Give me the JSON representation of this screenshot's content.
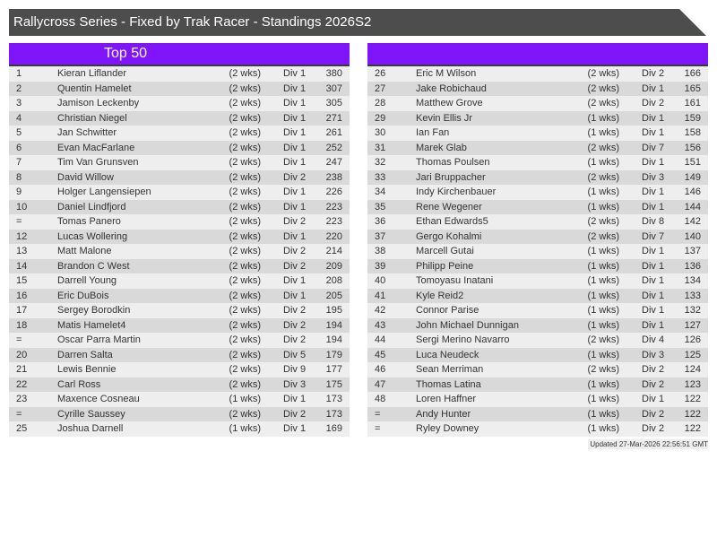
{
  "title": "Rallycross Series - Fixed by Trak Racer - Standings 2026S2",
  "left_panel": {
    "heading": "Top 50",
    "rows": [
      [
        "1",
        "Kieran Liflander",
        "(2 wks)",
        "Div 1",
        "380"
      ],
      [
        "2",
        "Quentin Hamelet",
        "(2 wks)",
        "Div 1",
        "307"
      ],
      [
        "3",
        "Jamison Leckenby",
        "(2 wks)",
        "Div 1",
        "305"
      ],
      [
        "4",
        "Christian Niegel",
        "(2 wks)",
        "Div 1",
        "271"
      ],
      [
        "5",
        "Jan Schwitter",
        "(2 wks)",
        "Div 1",
        "261"
      ],
      [
        "6",
        "Evan MacFarlane",
        "(2 wks)",
        "Div 1",
        "252"
      ],
      [
        "7",
        "Tim Van Grunsven",
        "(2 wks)",
        "Div 1",
        "247"
      ],
      [
        "8",
        "David Willow",
        "(2 wks)",
        "Div 2",
        "238"
      ],
      [
        "9",
        "Holger Langensiepen",
        "(2 wks)",
        "Div 1",
        "226"
      ],
      [
        "10",
        "Daniel Lindfjord",
        "(2 wks)",
        "Div 1",
        "223"
      ],
      [
        "=",
        "Tomas Panero",
        "(2 wks)",
        "Div 2",
        "223"
      ],
      [
        "12",
        "Lucas Wollering",
        "(2 wks)",
        "Div 1",
        "220"
      ],
      [
        "13",
        "Matt Malone",
        "(2 wks)",
        "Div 2",
        "214"
      ],
      [
        "14",
        "Brandon C West",
        "(2 wks)",
        "Div 2",
        "209"
      ],
      [
        "15",
        "Darrell Young",
        "(2 wks)",
        "Div 1",
        "208"
      ],
      [
        "16",
        "Eric DuBois",
        "(2 wks)",
        "Div 1",
        "205"
      ],
      [
        "17",
        "Sergey Borodkin",
        "(2 wks)",
        "Div 2",
        "195"
      ],
      [
        "18",
        "Matis Hamelet4",
        "(2 wks)",
        "Div 2",
        "194"
      ],
      [
        "=",
        "Oscar Parra Martin",
        "(2 wks)",
        "Div 2",
        "194"
      ],
      [
        "20",
        "Darren Salta",
        "(2 wks)",
        "Div 5",
        "179"
      ],
      [
        "21",
        "Lewis Bennie",
        "(2 wks)",
        "Div 9",
        "177"
      ],
      [
        "22",
        "Carl Ross",
        "(2 wks)",
        "Div 3",
        "175"
      ],
      [
        "23",
        "Maxence Cosneau",
        "(1 wks)",
        "Div 1",
        "173"
      ],
      [
        "=",
        "Cyrille Saussey",
        "(2 wks)",
        "Div 2",
        "173"
      ],
      [
        "25",
        "Joshua Darnell",
        "(1 wks)",
        "Div 1",
        "169"
      ]
    ]
  },
  "right_panel": {
    "heading": "",
    "rows": [
      [
        "26",
        "Eric M Wilson",
        "(2 wks)",
        "Div 2",
        "166"
      ],
      [
        "27",
        "Jake Robichaud",
        "(2 wks)",
        "Div 1",
        "165"
      ],
      [
        "28",
        "Matthew Grove",
        "(2 wks)",
        "Div 2",
        "161"
      ],
      [
        "29",
        "Kevin Ellis Jr",
        "(1 wks)",
        "Div 1",
        "159"
      ],
      [
        "30",
        "Ian Fan",
        "(1 wks)",
        "Div 1",
        "158"
      ],
      [
        "31",
        "Marek Glab",
        "(2 wks)",
        "Div 7",
        "156"
      ],
      [
        "32",
        "Thomas Poulsen",
        "(1 wks)",
        "Div 1",
        "151"
      ],
      [
        "33",
        "Jari Bruppacher",
        "(2 wks)",
        "Div 3",
        "149"
      ],
      [
        "34",
        "Indy Kirchenbauer",
        "(1 wks)",
        "Div 1",
        "146"
      ],
      [
        "35",
        "Rene Wegener",
        "(1 wks)",
        "Div 1",
        "144"
      ],
      [
        "36",
        "Ethan Edwards5",
        "(2 wks)",
        "Div 8",
        "142"
      ],
      [
        "37",
        "Gergo Kohalmi",
        "(2 wks)",
        "Div 7",
        "140"
      ],
      [
        "38",
        "Marcell Gutai",
        "(1 wks)",
        "Div 1",
        "137"
      ],
      [
        "39",
        "Philipp Peine",
        "(1 wks)",
        "Div 1",
        "136"
      ],
      [
        "40",
        "Tomoyasu Inatani",
        "(1 wks)",
        "Div 1",
        "134"
      ],
      [
        "41",
        "Kyle Reid2",
        "(1 wks)",
        "Div 1",
        "133"
      ],
      [
        "42",
        "Connor Parise",
        "(1 wks)",
        "Div 1",
        "132"
      ],
      [
        "43",
        "John Michael Dunnigan",
        "(1 wks)",
        "Div 1",
        "127"
      ],
      [
        "44",
        "Sergi Merino Navarro",
        "(2 wks)",
        "Div 4",
        "126"
      ],
      [
        "45",
        "Luca Neudeck",
        "(1 wks)",
        "Div 3",
        "125"
      ],
      [
        "46",
        "Sean Merriman",
        "(2 wks)",
        "Div 2",
        "124"
      ],
      [
        "47",
        "Thomas Latina",
        "(1 wks)",
        "Div 2",
        "123"
      ],
      [
        "48",
        "Loren Haffner",
        "(1 wks)",
        "Div 1",
        "122"
      ],
      [
        "=",
        "Andy Hunter",
        "(1 wks)",
        "Div 2",
        "122"
      ],
      [
        "=",
        "Ryley Downey",
        "(1 wks)",
        "Div 2",
        "122"
      ]
    ]
  },
  "updated": "Updated 27-Mar-2026 22:56:51 GMT",
  "colors": {
    "title_bg": "#4d4d4d",
    "header_bg": "#8015fb",
    "row_odd": "#eeeeee",
    "row_even": "#d9d9d9"
  }
}
